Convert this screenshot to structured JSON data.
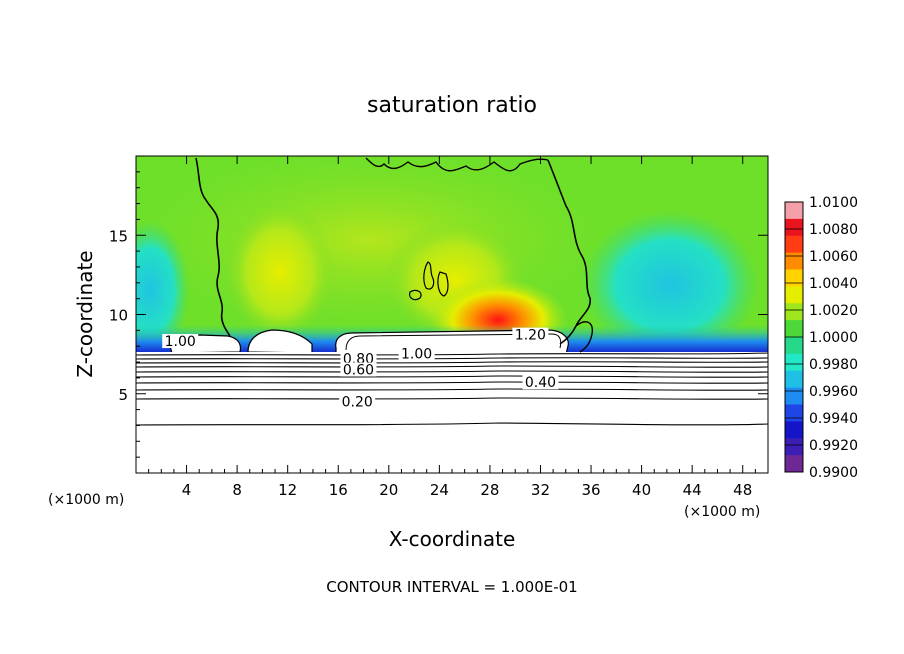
{
  "chart_data": {
    "type": "heatmap",
    "title": "saturation ratio",
    "xlabel": "X-coordinate",
    "ylabel": "Z-coordinate",
    "x_unit_left": "(×1000 m)",
    "x_unit_right": "(×1000 m)",
    "footer": "CONTOUR INTERVAL = 1.000E-01",
    "xlim": [
      0,
      50
    ],
    "ylim": [
      0,
      20
    ],
    "x_ticks": [
      4,
      8,
      12,
      16,
      20,
      24,
      28,
      32,
      36,
      40,
      44,
      48
    ],
    "x_tick_labels": [
      "4",
      "8",
      "12",
      "16",
      "20",
      "24",
      "28",
      "32",
      "36",
      "40",
      "44",
      "48"
    ],
    "y_ticks": [
      5,
      10,
      15
    ],
    "y_tick_labels": [
      "5",
      "10",
      "15"
    ],
    "colorbar": {
      "min": 0.99,
      "max": 1.01,
      "labels": [
        "1.0100",
        "1.0080",
        "1.0060",
        "1.0040",
        "1.0020",
        "1.0000",
        "0.9980",
        "0.9960",
        "0.9940",
        "0.9920",
        "0.9900"
      ],
      "colors": [
        "#f5a0a8",
        "#e8141e",
        "#ff3c14",
        "#ff8c00",
        "#ffd200",
        "#e6ee00",
        "#a0e61e",
        "#4cd838",
        "#26d88a",
        "#22e8c8",
        "#20c0e6",
        "#1e8cf0",
        "#1e46e6",
        "#1414c8",
        "#3c1eb4",
        "#6e2896"
      ]
    },
    "contour_labels": [
      {
        "text": "1.00",
        "x": 3.5,
        "y": 8.2
      },
      {
        "text": "1.20",
        "x": 31.2,
        "y": 8.6
      },
      {
        "text": "0.80",
        "x": 17.6,
        "y": 7.1
      },
      {
        "text": "1.00",
        "x": 22.2,
        "y": 7.4
      },
      {
        "text": "0.60",
        "x": 17.6,
        "y": 6.4
      },
      {
        "text": "0.40",
        "x": 32.0,
        "y": 5.6
      },
      {
        "text": "0.20",
        "x": 17.5,
        "y": 4.4
      }
    ]
  }
}
